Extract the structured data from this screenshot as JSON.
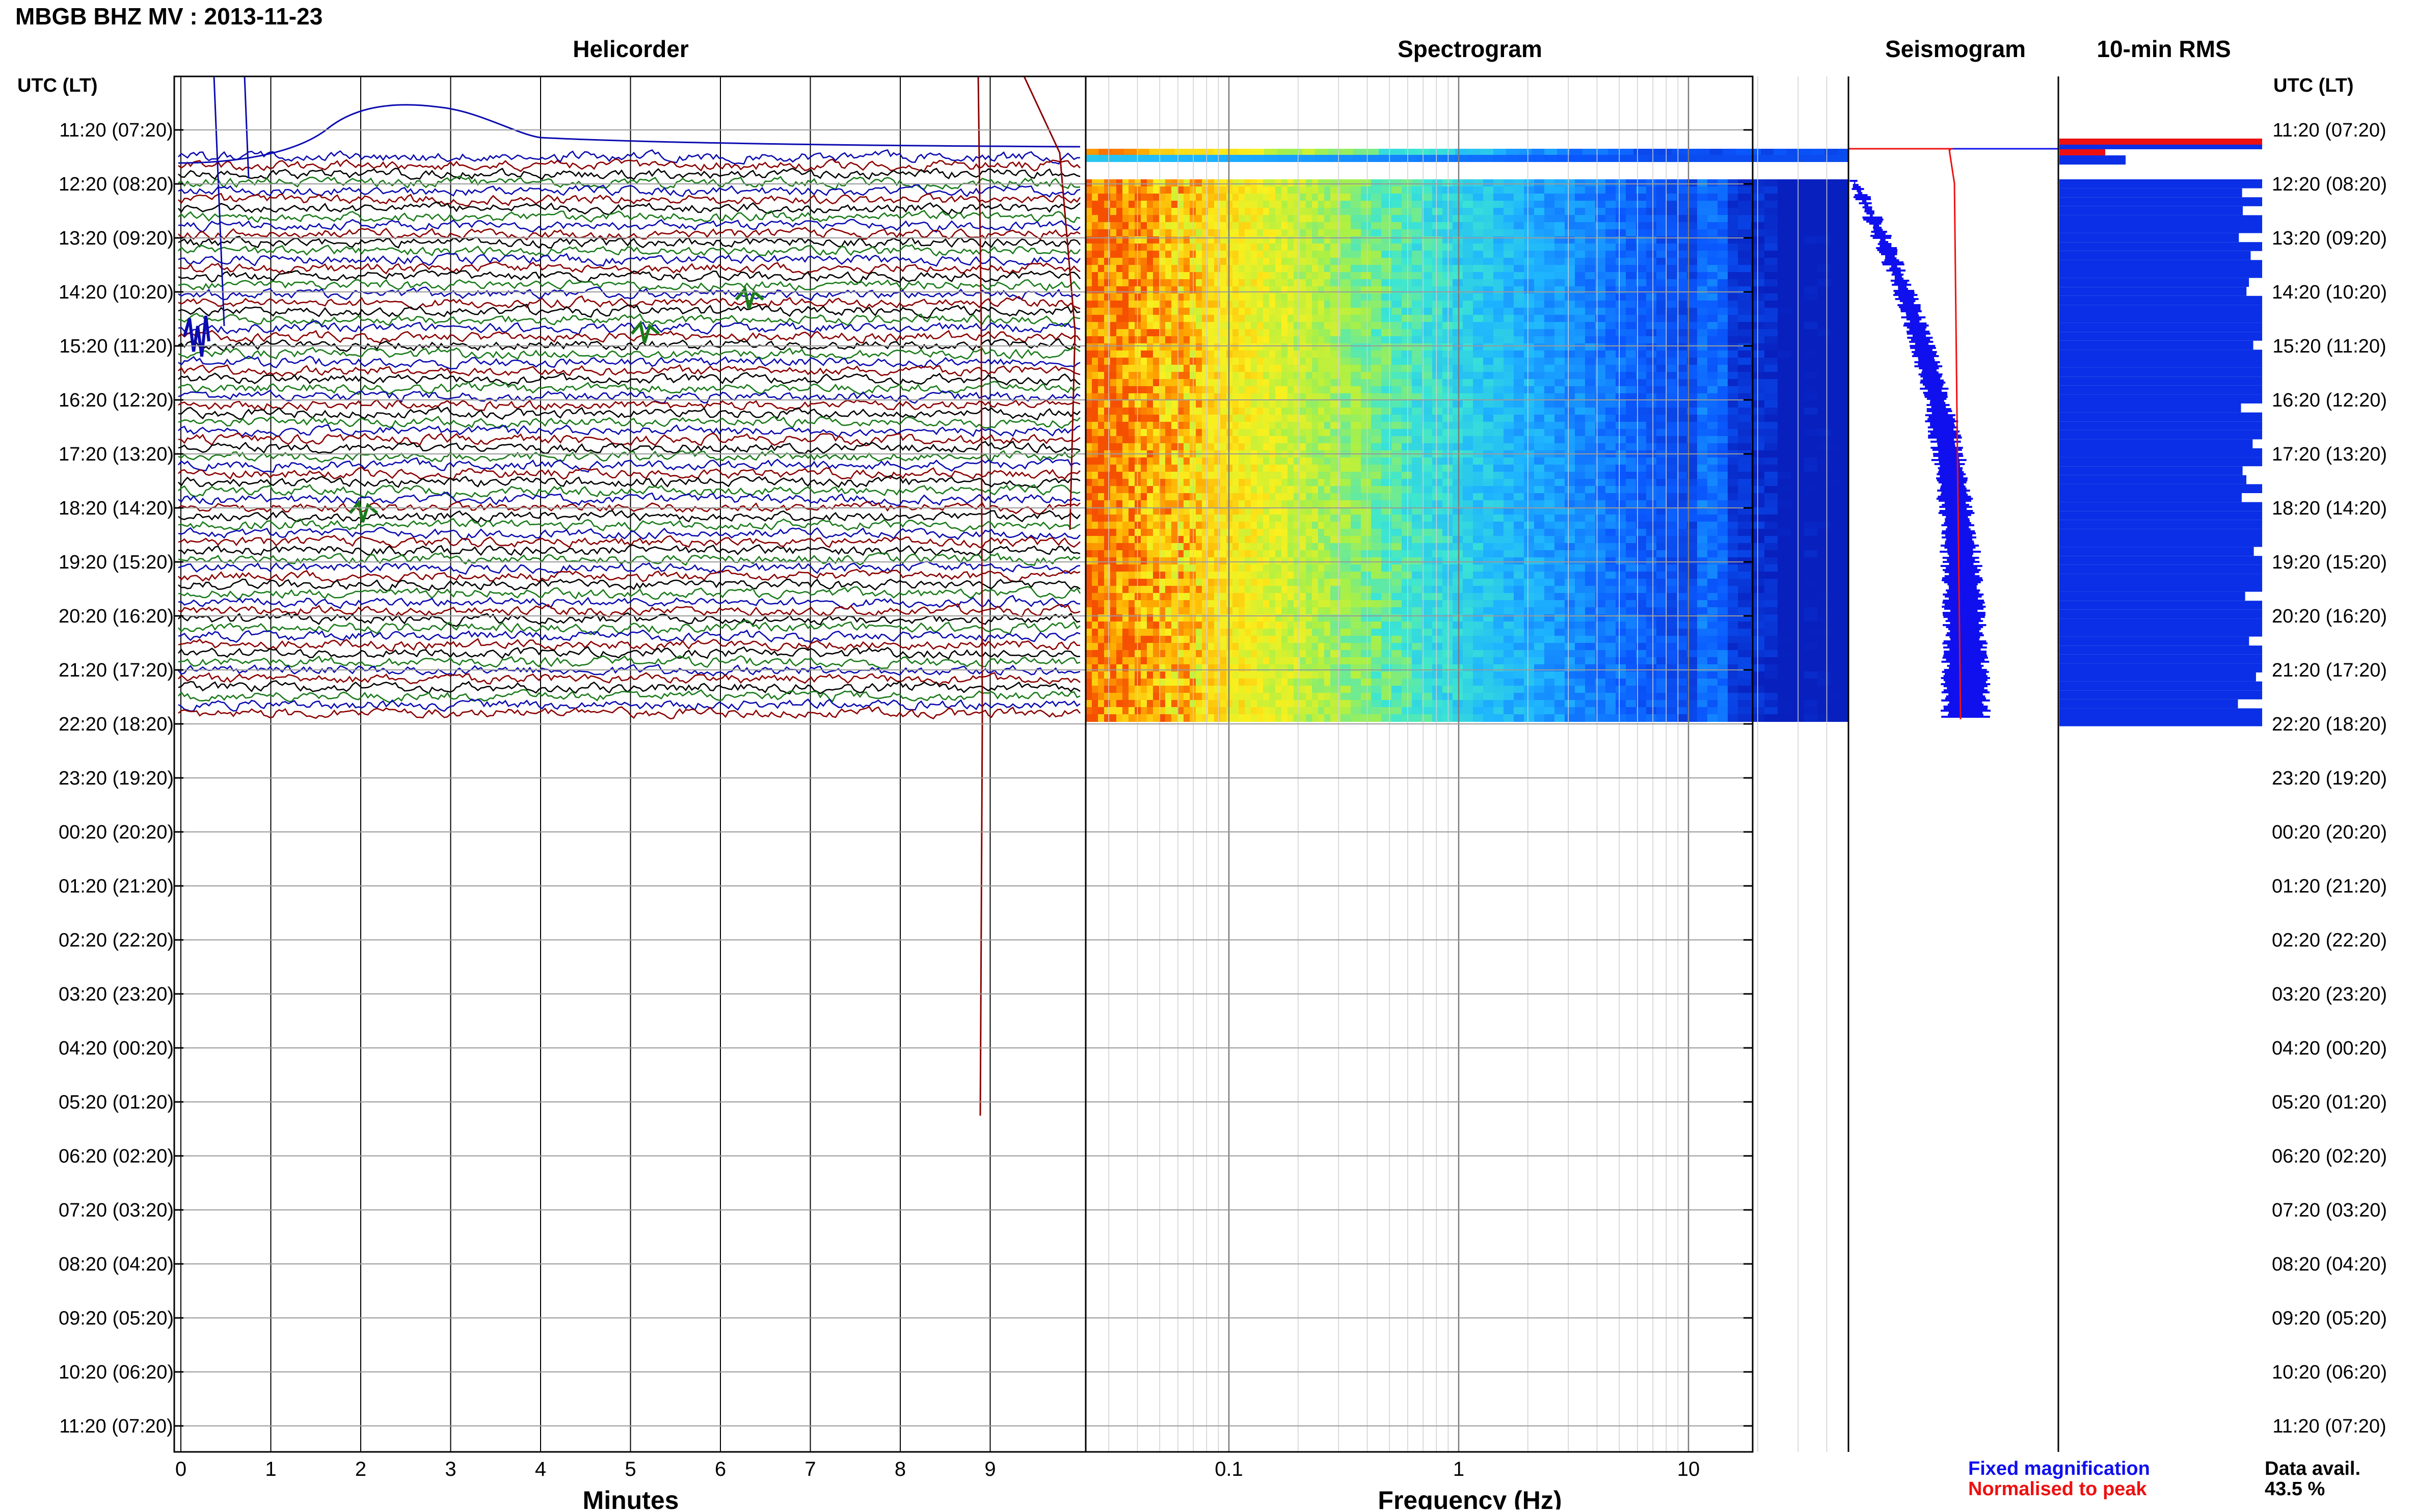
{
  "header": {
    "title": "MBGB BHZ MV : 2013-11-23",
    "time_axis_label": "UTC (LT)"
  },
  "time_labels": [
    "11:20 (07:20)",
    "12:20 (08:20)",
    "13:20 (09:20)",
    "14:20 (10:20)",
    "15:20 (11:20)",
    "16:20 (12:20)",
    "17:20 (13:20)",
    "18:20 (14:20)",
    "19:20 (15:20)",
    "20:20 (16:20)",
    "21:20 (17:20)",
    "22:20 (18:20)",
    "23:20 (19:20)",
    "00:20 (20:20)",
    "01:20 (21:20)",
    "02:20 (22:20)",
    "03:20 (23:20)",
    "04:20 (00:20)",
    "05:20 (01:20)",
    "06:20 (02:20)",
    "07:20 (03:20)",
    "08:20 (04:20)",
    "09:20 (05:20)",
    "10:20 (06:20)",
    "11:20 (07:20)"
  ],
  "panels": {
    "helicorder": {
      "title": "Helicorder",
      "xlabel": "Minutes",
      "ticks": [
        "0",
        "1",
        "2",
        "3",
        "4",
        "5",
        "6",
        "7",
        "8",
        "9"
      ],
      "trace_colors": [
        "#0b0bb0",
        "#8b0000",
        "#000000",
        "#1a7a1a"
      ]
    },
    "spectrogram": {
      "title": "Spectrogram",
      "xlabel": "Frequency (Hz)",
      "ticks": [
        "0.1",
        "1",
        "10"
      ]
    },
    "seismogram": {
      "title": "Seismogram",
      "legend": [
        {
          "label": "Fixed magnification",
          "color": "#1010ee"
        },
        {
          "label": "Normalised to peak",
          "color": "#ee1010"
        }
      ]
    },
    "rms": {
      "title": "10-min RMS",
      "data_avail_label": "Data avail.",
      "data_avail_value": "43.5 %"
    }
  },
  "chart_data": {
    "type": "heatmap",
    "title": "MBGB BHZ MV : 2013-11-23",
    "hours_with_data": 11,
    "helicorder_range_minutes": [
      0,
      10
    ],
    "spectrogram_frequency_range_hz": [
      0.025,
      50
    ],
    "frequency_scale": "log",
    "data_availability_percent": 43.5,
    "colors": {
      "helicorder_lines": [
        "#0b0bb0",
        "#8b0000",
        "#000000",
        "#1a7a1a"
      ],
      "rms_bar": "#0a2fe6",
      "rms_peak": "#ee1010"
    }
  }
}
